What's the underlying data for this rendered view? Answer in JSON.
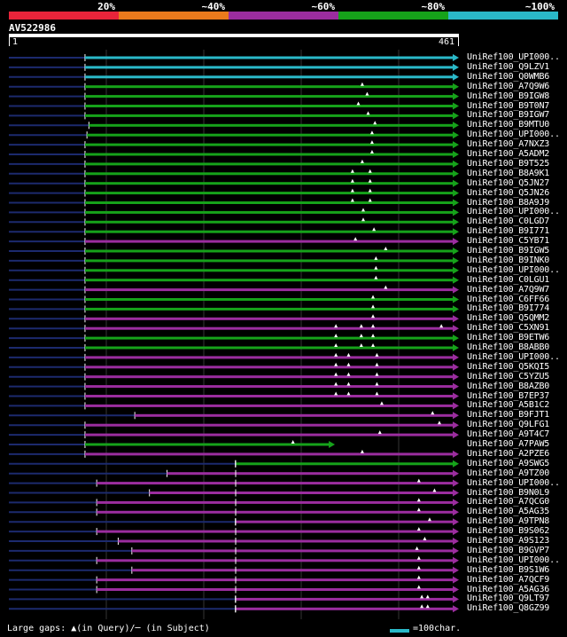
{
  "legend": {
    "items": [
      {
        "label": "20%",
        "color": "#e8243a"
      },
      {
        "label": "~40%",
        "color": "#ea7a1c"
      },
      {
        "label": "~60%",
        "color": "#9b2d9f"
      },
      {
        "label": "~80%",
        "color": "#16a21a"
      },
      {
        "label": "~100%",
        "color": "#2ab8c8"
      }
    ]
  },
  "query": {
    "id": "AV522986",
    "start": "1",
    "end": "461",
    "length": 461
  },
  "colors": {
    "cyan": "#2ab8c8",
    "green": "#16a21a",
    "purple": "#9b2d9f",
    "navy": "#1c2a6e",
    "grid": "#333333"
  },
  "hits": [
    {
      "name": "UniRef100_UPI000..",
      "color": "cyan",
      "qs": 78,
      "ub": 0,
      "gaps": []
    },
    {
      "name": "UniRef100_Q9LZV1",
      "color": "cyan",
      "qs": 78,
      "ub": 0,
      "gaps": []
    },
    {
      "name": "UniRef100_Q0WMB6",
      "color": "cyan",
      "qs": 78,
      "ub": 0,
      "gaps": []
    },
    {
      "name": "UniRef100_A7Q9W6",
      "color": "green",
      "qs": 78,
      "ub": 0,
      "gaps": [
        362
      ]
    },
    {
      "name": "UniRef100_B9IGW8",
      "color": "green",
      "qs": 78,
      "ub": 0,
      "gaps": [
        367
      ]
    },
    {
      "name": "UniRef100_B9T0N7",
      "color": "green",
      "qs": 78,
      "ub": 0,
      "gaps": [
        358
      ]
    },
    {
      "name": "UniRef100_B9IGW7",
      "color": "green",
      "qs": 78,
      "ub": 0,
      "gaps": [
        368
      ]
    },
    {
      "name": "UniRef100_B9MTU0",
      "color": "green",
      "qs": 82,
      "ub": 0,
      "gaps": [
        375
      ]
    },
    {
      "name": "UniRef100_UPI000..",
      "color": "green",
      "qs": 80,
      "ub": 0,
      "gaps": [
        372
      ]
    },
    {
      "name": "UniRef100_A7NXZ3",
      "color": "green",
      "qs": 78,
      "ub": 0,
      "gaps": [
        372
      ]
    },
    {
      "name": "UniRef100_A5ADM2",
      "color": "green",
      "qs": 78,
      "ub": 0,
      "gaps": [
        372
      ]
    },
    {
      "name": "UniRef100_B9T525",
      "color": "green",
      "qs": 78,
      "ub": 0,
      "gaps": [
        362
      ]
    },
    {
      "name": "UniRef100_B8A9K1",
      "color": "green",
      "qs": 78,
      "ub": 0,
      "gaps": [
        352,
        370
      ]
    },
    {
      "name": "UniRef100_Q5JN27",
      "color": "green",
      "qs": 78,
      "ub": 0,
      "gaps": [
        352,
        370
      ]
    },
    {
      "name": "UniRef100_Q5JN26",
      "color": "green",
      "qs": 78,
      "ub": 0,
      "gaps": [
        352,
        370
      ]
    },
    {
      "name": "UniRef100_B8A9J9",
      "color": "green",
      "qs": 78,
      "ub": 0,
      "gaps": [
        352,
        370
      ]
    },
    {
      "name": "UniRef100_UPI000..",
      "color": "green",
      "qs": 78,
      "ub": 0,
      "gaps": [
        363
      ]
    },
    {
      "name": "UniRef100_C0LGD7",
      "color": "green",
      "qs": 78,
      "ub": 0,
      "gaps": [
        363
      ]
    },
    {
      "name": "UniRef100_B9I771",
      "color": "green",
      "qs": 78,
      "ub": 0,
      "gaps": [
        374
      ]
    },
    {
      "name": "UniRef100_C5YB71",
      "color": "purple",
      "qs": 78,
      "ub": 0,
      "gaps": [
        355
      ]
    },
    {
      "name": "UniRef100_B9IGW5",
      "color": "green",
      "qs": 78,
      "ub": 0,
      "gaps": [
        386
      ]
    },
    {
      "name": "UniRef100_B9INK0",
      "color": "green",
      "qs": 78,
      "ub": 0,
      "gaps": [
        376
      ]
    },
    {
      "name": "UniRef100_UPI000..",
      "color": "green",
      "qs": 78,
      "ub": 0,
      "gaps": [
        376
      ]
    },
    {
      "name": "UniRef100_C0LGU1",
      "color": "green",
      "qs": 78,
      "ub": 0,
      "gaps": [
        376
      ]
    },
    {
      "name": "UniRef100_A7Q9W7",
      "color": "purple",
      "qs": 78,
      "ub": 0,
      "gaps": [
        386
      ]
    },
    {
      "name": "UniRef100_C6FF66",
      "color": "green",
      "qs": 78,
      "ub": 0,
      "gaps": [
        373
      ]
    },
    {
      "name": "UniRef100_B9I774",
      "color": "green",
      "qs": 78,
      "ub": 0,
      "gaps": [
        373
      ]
    },
    {
      "name": "UniRef100_Q5QMM2",
      "color": "purple",
      "qs": 78,
      "ub": 0,
      "gaps": [
        373
      ]
    },
    {
      "name": "UniRef100_C5XN91",
      "color": "purple",
      "qs": 78,
      "ub": 0,
      "gaps": [
        335,
        361,
        373,
        443
      ]
    },
    {
      "name": "UniRef100_B9ETW6",
      "color": "green",
      "qs": 78,
      "ub": 0,
      "gaps": [
        335,
        361,
        373
      ]
    },
    {
      "name": "UniRef100_B8ABB0",
      "color": "green",
      "qs": 78,
      "ub": 0,
      "gaps": [
        335,
        361,
        373
      ]
    },
    {
      "name": "UniRef100_UPI000..",
      "color": "purple",
      "qs": 78,
      "ub": 0,
      "gaps": [
        335,
        348,
        377
      ]
    },
    {
      "name": "UniRef100_Q5KQI5",
      "color": "purple",
      "qs": 78,
      "ub": 0,
      "gaps": [
        335,
        348,
        377
      ]
    },
    {
      "name": "UniRef100_C5YZU5",
      "color": "purple",
      "qs": 78,
      "ub": 0,
      "gaps": [
        335,
        348,
        377
      ]
    },
    {
      "name": "UniRef100_B8AZB0",
      "color": "purple",
      "qs": 78,
      "ub": 0,
      "gaps": [
        335,
        348,
        377
      ]
    },
    {
      "name": "UniRef100_B7EP37",
      "color": "purple",
      "qs": 78,
      "ub": 0,
      "gaps": [
        335,
        348,
        377
      ]
    },
    {
      "name": "UniRef100_A5B1C2",
      "color": "purple",
      "qs": 78,
      "ub": 0,
      "gaps": [
        382
      ]
    },
    {
      "name": "UniRef100_B9FJT1",
      "color": "purple",
      "qs": 129,
      "ub": 0,
      "gaps": [
        434
      ]
    },
    {
      "name": "UniRef100_Q9LFG1",
      "color": "purple",
      "qs": 78,
      "ub": 0,
      "gaps": [
        441
      ]
    },
    {
      "name": "UniRef100_A9T4C7",
      "color": "purple",
      "qs": 78,
      "ub": 0,
      "gaps": [
        380
      ]
    },
    {
      "name": "UniRef100_A7PAW5",
      "color": "green",
      "qs": 78,
      "qe": 334,
      "ub": 0,
      "gaps": [
        291
      ]
    },
    {
      "name": "UniRef100_A2PZE6",
      "color": "purple",
      "qs": 78,
      "ub": 0,
      "gaps": [
        362
      ]
    },
    {
      "name": "UniRef100_A9SWG5",
      "color": "green",
      "qs": 232,
      "ub": 1,
      "gaps": []
    },
    {
      "name": "UniRef100_A9TZ00",
      "color": "purple",
      "qs": 162,
      "ub": 1,
      "gaps": []
    },
    {
      "name": "UniRef100_UPI000..",
      "color": "purple",
      "qs": 90,
      "ub": 1,
      "gaps": [
        420
      ]
    },
    {
      "name": "UniRef100_B9N0L9",
      "color": "purple",
      "qs": 144,
      "ub": 1,
      "gaps": [
        436
      ]
    },
    {
      "name": "UniRef100_A7QCG0",
      "color": "purple",
      "qs": 90,
      "ub": 1,
      "gaps": [
        420
      ]
    },
    {
      "name": "UniRef100_A5AG35",
      "color": "purple",
      "qs": 90,
      "ub": 1,
      "gaps": [
        420
      ]
    },
    {
      "name": "UniRef100_A9TPN8",
      "color": "purple",
      "qs": 232,
      "ub": 1,
      "gaps": [
        431
      ]
    },
    {
      "name": "UniRef100_B9S062",
      "color": "purple",
      "qs": 90,
      "ub": 1,
      "gaps": [
        420
      ]
    },
    {
      "name": "UniRef100_A9S123",
      "color": "purple",
      "qs": 112,
      "ub": 1,
      "gaps": [
        426
      ]
    },
    {
      "name": "UniRef100_B9GVP7",
      "color": "purple",
      "qs": 126,
      "ub": 1,
      "gaps": [
        418
      ]
    },
    {
      "name": "UniRef100_UPI000..",
      "color": "purple",
      "qs": 90,
      "ub": 1,
      "gaps": [
        420
      ]
    },
    {
      "name": "UniRef100_B9S1W6",
      "color": "purple",
      "qs": 126,
      "ub": 1,
      "gaps": [
        420
      ]
    },
    {
      "name": "UniRef100_A7QCF9",
      "color": "purple",
      "qs": 90,
      "ub": 1,
      "gaps": [
        420
      ]
    },
    {
      "name": "UniRef100_A5AG36",
      "color": "purple",
      "qs": 90,
      "ub": 1,
      "gaps": [
        420
      ]
    },
    {
      "name": "UniRef100_Q9LT97",
      "color": "purple",
      "qs": 232,
      "ub": 1,
      "gaps": [
        423,
        429
      ]
    },
    {
      "name": "UniRef100_Q8GZ99",
      "color": "purple",
      "qs": 232,
      "ub": 1,
      "gaps": [
        423,
        429
      ]
    }
  ],
  "footer": {
    "gaps_text": "Large gaps: ▲(in Query)/─ (in Subject)",
    "scale_text": "=100char."
  }
}
